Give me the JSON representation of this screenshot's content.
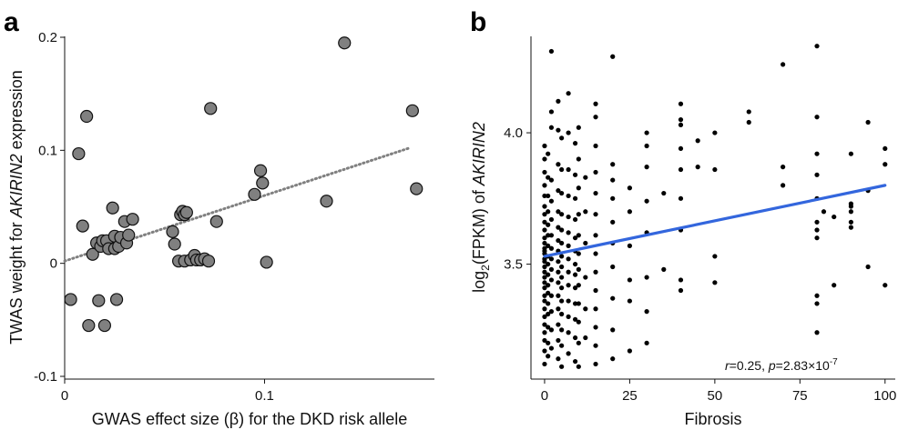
{
  "chart_data": [
    {
      "panel_label": "a",
      "type": "scatter",
      "xlabel": "GWAS effect size (β) for the DKD risk allele",
      "ylabel_pre": "TWAS weight for ",
      "ylabel_gene": "AKIRIN2",
      "ylabel_post": " expression",
      "xlim": [
        0,
        0.185
      ],
      "ylim": [
        -0.1,
        0.2
      ],
      "xticks": [
        0,
        0.1
      ],
      "xtick_labels": [
        "0",
        "0.1"
      ],
      "yticks": [
        -0.1,
        0,
        0.1,
        0.2
      ],
      "ytick_labels": [
        "-0.1",
        "0",
        "0.1",
        "0.2"
      ],
      "point_color": "#808080",
      "trend_color": "#808080",
      "trend_style": "dotted",
      "trend_line": {
        "intercept": 0.002,
        "slope": 0.58
      },
      "points": [
        [
          0.003,
          -0.032
        ],
        [
          0.007,
          0.097
        ],
        [
          0.009,
          0.033
        ],
        [
          0.011,
          0.13
        ],
        [
          0.012,
          -0.055
        ],
        [
          0.014,
          0.008
        ],
        [
          0.016,
          0.018
        ],
        [
          0.017,
          -0.033
        ],
        [
          0.018,
          0.015
        ],
        [
          0.019,
          0.02
        ],
        [
          0.02,
          -0.055
        ],
        [
          0.021,
          0.02
        ],
        [
          0.022,
          0.013
        ],
        [
          0.024,
          0.049
        ],
        [
          0.025,
          0.013
        ],
        [
          0.025,
          0.024
        ],
        [
          0.026,
          -0.032
        ],
        [
          0.027,
          0.015
        ],
        [
          0.028,
          0.023
        ],
        [
          0.03,
          0.037
        ],
        [
          0.031,
          0.018
        ],
        [
          0.032,
          0.025
        ],
        [
          0.034,
          0.039
        ],
        [
          0.054,
          0.028
        ],
        [
          0.055,
          0.017
        ],
        [
          0.057,
          0.002
        ],
        [
          0.058,
          0.043
        ],
        [
          0.059,
          0.046
        ],
        [
          0.06,
          0.043
        ],
        [
          0.06,
          0.002
        ],
        [
          0.061,
          0.045
        ],
        [
          0.063,
          0.003
        ],
        [
          0.065,
          0.007
        ],
        [
          0.066,
          0.003
        ],
        [
          0.068,
          0.003
        ],
        [
          0.07,
          0.004
        ],
        [
          0.072,
          0.002
        ],
        [
          0.073,
          0.137
        ],
        [
          0.076,
          0.037
        ],
        [
          0.095,
          0.061
        ],
        [
          0.098,
          0.082
        ],
        [
          0.099,
          0.071
        ],
        [
          0.101,
          0.001
        ],
        [
          0.131,
          0.055
        ],
        [
          0.14,
          0.195
        ],
        [
          0.174,
          0.135
        ],
        [
          0.176,
          0.066
        ]
      ]
    },
    {
      "panel_label": "b",
      "type": "scatter",
      "xlabel": "Fibrosis",
      "ylabel_pre": "log",
      "ylabel_sub": "2",
      "ylabel_mid": "(FPKM) of ",
      "ylabel_gene": "AKIRIN2",
      "xlim": [
        -4,
        103
      ],
      "ylim": [
        3.08,
        4.36
      ],
      "xticks": [
        0,
        25,
        50,
        75,
        100
      ],
      "xtick_labels": [
        "0",
        "25",
        "50",
        "75",
        "100"
      ],
      "yticks": [
        3.5,
        4.0
      ],
      "ytick_labels": [
        "3.5",
        "4.0"
      ],
      "point_color": "#000000",
      "fit_color": "#3366dd",
      "fit_line": {
        "x0": 0,
        "y0": 3.53,
        "x1": 100,
        "y1": 3.8
      },
      "annotation": {
        "r_label": "r",
        "r_value": "=0.25, ",
        "p_label": "p",
        "p_value": "=2.83×10",
        "p_exp": "-7"
      },
      "columns": [
        {
          "x": 0,
          "y": [
            3.12,
            3.17,
            3.21,
            3.24,
            3.27,
            3.3,
            3.33,
            3.36,
            3.38,
            3.41,
            3.43,
            3.45,
            3.47,
            3.49,
            3.51,
            3.52,
            3.54,
            3.55,
            3.56,
            3.58,
            3.6,
            3.63,
            3.66,
            3.69,
            3.72,
            3.76,
            3.8,
            3.85,
            3.9,
            3.95
          ]
        },
        {
          "x": 1,
          "y": [
            3.15,
            3.2,
            3.26,
            3.31,
            3.35,
            3.39,
            3.42,
            3.46,
            3.5,
            3.53,
            3.57,
            3.61,
            3.65,
            3.7,
            3.76,
            3.83,
            3.92
          ]
        },
        {
          "x": 2,
          "y": [
            3.18,
            3.25,
            3.32,
            3.38,
            3.44,
            3.48,
            3.52,
            3.56,
            3.61,
            3.67,
            3.74,
            3.82,
            4.02,
            4.08,
            4.31
          ]
        },
        {
          "x": 4,
          "y": [
            3.14,
            3.21,
            3.27,
            3.33,
            3.38,
            3.43,
            3.47,
            3.51,
            3.55,
            3.59,
            3.64,
            3.7,
            3.78,
            3.88,
            4.01,
            4.12
          ]
        },
        {
          "x": 5,
          "y": [
            3.11,
            3.19,
            3.25,
            3.31,
            3.36,
            3.41,
            3.45,
            3.49,
            3.53,
            3.58,
            3.63,
            3.69,
            3.77,
            3.86,
            3.98
          ]
        },
        {
          "x": 7,
          "y": [
            3.16,
            3.24,
            3.3,
            3.36,
            3.42,
            3.47,
            3.52,
            3.57,
            3.62,
            3.68,
            3.76,
            3.86,
            4.0,
            4.15
          ]
        },
        {
          "x": 9,
          "y": [
            3.13,
            3.22,
            3.29,
            3.35,
            3.41,
            3.46,
            3.5,
            3.55,
            3.6,
            3.67,
            3.75,
            3.84,
            3.96
          ]
        },
        {
          "x": 10,
          "y": [
            3.11,
            3.2,
            3.28,
            3.35,
            3.42,
            3.48,
            3.54,
            3.61,
            3.69,
            3.79,
            3.9,
            4.02
          ]
        },
        {
          "x": 12,
          "y": [
            3.22,
            3.33,
            3.45,
            3.58,
            3.7,
            3.83
          ]
        },
        {
          "x": 15,
          "y": [
            3.12,
            3.19,
            3.26,
            3.33,
            3.4,
            3.47,
            3.54,
            3.61,
            3.69,
            3.77,
            3.85,
            3.95,
            4.06,
            4.11
          ]
        },
        {
          "x": 20,
          "y": [
            3.14,
            3.25,
            3.37,
            3.49,
            3.58,
            3.66,
            3.75,
            3.82,
            3.88,
            4.29
          ]
        },
        {
          "x": 25,
          "y": [
            3.17,
            3.36,
            3.44,
            3.57,
            3.7,
            3.79
          ]
        },
        {
          "x": 30,
          "y": [
            3.2,
            3.32,
            3.45,
            3.62,
            3.74,
            3.87,
            3.95,
            4.0
          ]
        },
        {
          "x": 35,
          "y": [
            3.48,
            3.77
          ]
        },
        {
          "x": 40,
          "y": [
            3.4,
            3.44,
            3.63,
            3.75,
            3.86,
            3.94,
            4.03,
            4.05,
            4.11
          ]
        },
        {
          "x": 45,
          "y": [
            3.87,
            3.97
          ]
        },
        {
          "x": 50,
          "y": [
            3.43,
            3.53,
            3.86,
            4.0
          ]
        },
        {
          "x": 60,
          "y": [
            4.04,
            4.08
          ]
        },
        {
          "x": 70,
          "y": [
            3.8,
            3.87,
            4.26
          ]
        },
        {
          "x": 80,
          "y": [
            3.24,
            3.35,
            3.38,
            3.6,
            3.63,
            3.66,
            3.75,
            3.84,
            3.92,
            4.06,
            4.33
          ]
        },
        {
          "x": 82,
          "y": [
            3.7
          ]
        },
        {
          "x": 85,
          "y": [
            3.42,
            3.68
          ]
        },
        {
          "x": 90,
          "y": [
            3.64,
            3.66,
            3.7,
            3.72,
            3.73,
            3.92
          ]
        },
        {
          "x": 95,
          "y": [
            3.49,
            3.78,
            4.04
          ]
        },
        {
          "x": 100,
          "y": [
            3.42,
            3.88,
            3.94
          ]
        }
      ]
    }
  ]
}
